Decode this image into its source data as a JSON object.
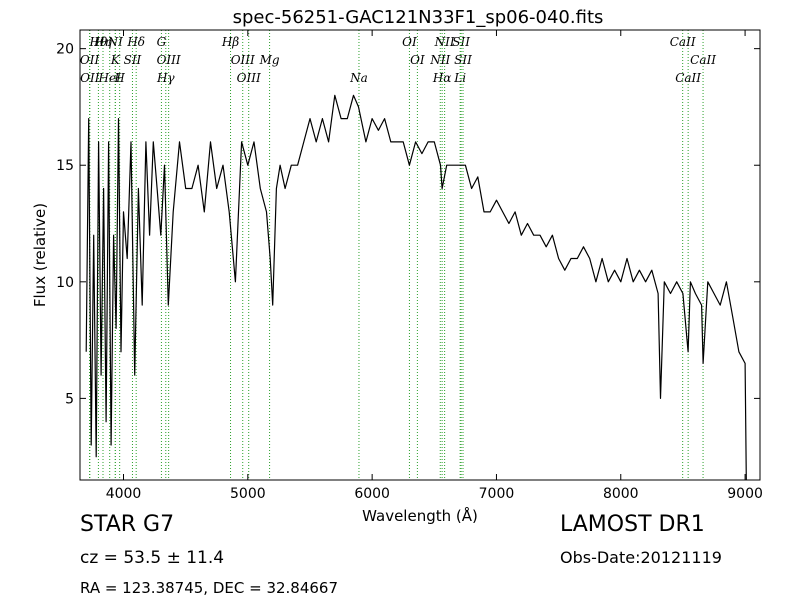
{
  "chart_data": {
    "type": "line",
    "title": "spec-56251-GAC121N33F1_sp06-040.fits",
    "xlabel": "Wavelength (Å)",
    "ylabel": "Flux (relative)",
    "xlim": [
      3650,
      9120
    ],
    "ylim": [
      1.5,
      20.8
    ],
    "xticks": [
      4000,
      5000,
      6000,
      7000,
      8000,
      9000
    ],
    "yticks": [
      5,
      10,
      15,
      20
    ],
    "grid": false,
    "legend": "none",
    "line_color": "#000000",
    "marker_color": "#2ca02c",
    "series": [
      {
        "x": [
          3700,
          3720,
          3740,
          3760,
          3780,
          3800,
          3820,
          3840,
          3860,
          3880,
          3900,
          3920,
          3940,
          3960,
          3980,
          4000,
          4030,
          4060,
          4090,
          4120,
          4150,
          4180,
          4210,
          4240,
          4270,
          4300,
          4330,
          4360,
          4400,
          4450,
          4500,
          4550,
          4600,
          4650,
          4700,
          4750,
          4800,
          4850,
          4900,
          4950,
          5000,
          5050,
          5100,
          5150,
          5180,
          5200,
          5230,
          5260,
          5300,
          5350,
          5400,
          5450,
          5500,
          5550,
          5600,
          5650,
          5700,
          5750,
          5800,
          5850,
          5890,
          5950,
          6000,
          6050,
          6100,
          6150,
          6200,
          6250,
          6300,
          6350,
          6400,
          6450,
          6500,
          6550,
          6563,
          6600,
          6650,
          6700,
          6750,
          6800,
          6850,
          6900,
          6950,
          7000,
          7050,
          7100,
          7150,
          7200,
          7250,
          7300,
          7350,
          7400,
          7450,
          7500,
          7550,
          7600,
          7650,
          7700,
          7750,
          7800,
          7850,
          7900,
          7950,
          8000,
          8050,
          8100,
          8150,
          8200,
          8250,
          8300,
          8320,
          8350,
          8400,
          8450,
          8500,
          8542,
          8560,
          8600,
          8650,
          8662,
          8700,
          8750,
          8800,
          8850,
          8900,
          8950,
          9000,
          9010
        ],
        "y": [
          7,
          17,
          3,
          12,
          2.5,
          16,
          6,
          14,
          4,
          16,
          3,
          12,
          8,
          17,
          7,
          13,
          11,
          16,
          6,
          14,
          9,
          16,
          12,
          16,
          14,
          12,
          15,
          9,
          13,
          16,
          14,
          14,
          15,
          13,
          16,
          14,
          15,
          13,
          10,
          16,
          15,
          16,
          14,
          13,
          11,
          9,
          14,
          15,
          14,
          15,
          15,
          16,
          17,
          16,
          17,
          16,
          18,
          17,
          17,
          18,
          17.5,
          16,
          17,
          16.5,
          17,
          16,
          16,
          16,
          15,
          16,
          15.5,
          16,
          16,
          15,
          14,
          15,
          15,
          15,
          15,
          14,
          14.5,
          13,
          13,
          13.5,
          13,
          12.5,
          13,
          12,
          12.5,
          12,
          12,
          11.5,
          12,
          11,
          10.5,
          11,
          11,
          11.5,
          11,
          10,
          11,
          10,
          10.5,
          10,
          11,
          10,
          10.5,
          10,
          10.5,
          9.5,
          5,
          10,
          9.5,
          10,
          9.5,
          7,
          10,
          9.5,
          9,
          6.5,
          10,
          9.5,
          9,
          10,
          8.5,
          7,
          6.5,
          1.5
        ]
      }
    ],
    "lines": [
      {
        "label": "Hθ",
        "wl": 3798
      },
      {
        "label": "OII",
        "wl": 3727
      },
      {
        "label": "OII",
        "wl": 3729
      },
      {
        "label": "Hη",
        "wl": 3835
      },
      {
        "label": "K",
        "wl": 3934
      },
      {
        "label": "HeI",
        "wl": 3889
      },
      {
        "label": "NI",
        "wl": 3934
      },
      {
        "label": "SII",
        "wl": 4072
      },
      {
        "label": "H",
        "wl": 3969
      },
      {
        "label": "Hδ",
        "wl": 4102
      },
      {
        "label": "OIII",
        "wl": 4363
      },
      {
        "label": "Hγ",
        "wl": 4340
      },
      {
        "label": "G",
        "wl": 4305
      },
      {
        "label": "OIII",
        "wl": 4959
      },
      {
        "label": "OIII",
        "wl": 5007
      },
      {
        "label": "Hβ",
        "wl": 4861
      },
      {
        "label": "Mg",
        "wl": 5175
      },
      {
        "label": "Na",
        "wl": 5894
      },
      {
        "label": "OI",
        "wl": 6300
      },
      {
        "label": "OI",
        "wl": 6364
      },
      {
        "label": "Hα",
        "wl": 6563
      },
      {
        "label": "SII",
        "wl": 6716
      },
      {
        "label": "NII",
        "wl": 6548
      },
      {
        "label": "Li",
        "wl": 6708
      },
      {
        "label": "NII",
        "wl": 6583
      },
      {
        "label": "SII",
        "wl": 6731
      },
      {
        "label": "CaII",
        "wl": 8542
      },
      {
        "label": "CaII",
        "wl": 8498
      },
      {
        "label": "CaII",
        "wl": 8662
      }
    ]
  },
  "info": {
    "class_text": "STAR   G7",
    "survey_text": "LAMOST DR1",
    "cz_text": "cz = 53.5  ± 11.4",
    "obs_text": "Obs-Date:20121119",
    "radec_text": "RA = 123.38745, DEC = 32.84667"
  }
}
